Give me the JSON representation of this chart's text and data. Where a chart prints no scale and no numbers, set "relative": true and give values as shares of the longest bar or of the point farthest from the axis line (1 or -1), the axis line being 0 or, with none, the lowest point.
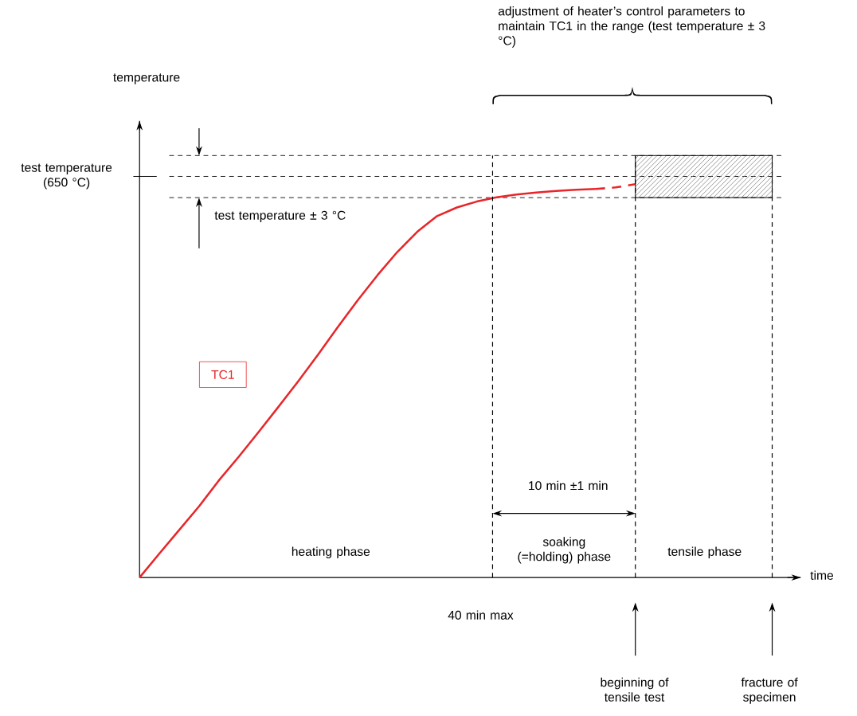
{
  "chart_data": {
    "type": "line",
    "relative": true,
    "categories": [
      null,
      null,
      null,
      null,
      null,
      null,
      null,
      null,
      null,
      null,
      null,
      null,
      null,
      null,
      null,
      null,
      null,
      null,
      null,
      null,
      null,
      null,
      null,
      null,
      null,
      null
    ],
    "series": [
      {
        "name": "TC1",
        "color": "#e8262a",
        "line_style": "solid",
        "values": [
          0,
          0.061,
          0.121,
          0.181,
          0.247,
          0.307,
          0.37,
          0.434,
          0.499,
          0.567,
          0.637,
          0.705,
          0.769,
          0.828,
          0.879,
          0.919,
          0.941,
          0.956,
          0.967,
          0.974,
          0.979,
          0.983,
          0.986,
          0.988,
          null,
          null
        ]
      },
      {
        "color": "#e8262a",
        "line_style": "dashed",
        "values": [
          null,
          null,
          null,
          null,
          null,
          null,
          null,
          null,
          null,
          null,
          null,
          null,
          null,
          null,
          null,
          null,
          null,
          null,
          null,
          null,
          null,
          null,
          null,
          0.988,
          0.992,
          1.0
        ]
      }
    ],
    "ref_lines": [
      {
        "axis": "y",
        "value": 1.073,
        "label": null,
        "line_style": "dashed"
      },
      {
        "axis": "y",
        "value": 1.02,
        "label": "test temperature (650 °C)",
        "line_style": "dashed"
      },
      {
        "axis": "y",
        "value": 0.966,
        "label": null,
        "line_style": "dashed"
      }
    ],
    "annotations": [
      "adjustment of heater’s control parameters to maintain TC1 in the range (test temperature ± 3 °C)",
      "test temperature ± 3 °C",
      "10 min ±1 min",
      "heating phase",
      "soaking (=holding) phase",
      "tensile phase",
      "40 min max",
      "temperature",
      "time",
      "beginning of tensile test",
      "fracture of specimen"
    ]
  }
}
